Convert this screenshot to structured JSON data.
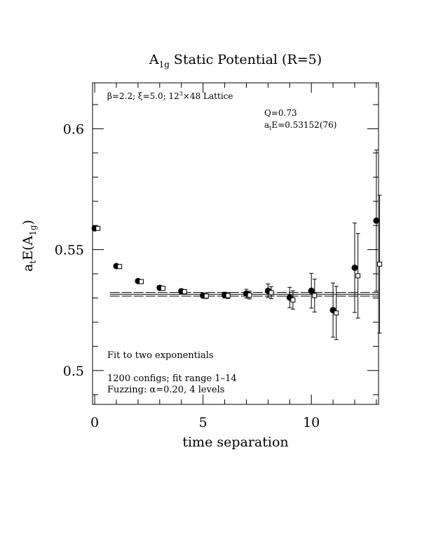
{
  "chart_data": {
    "type": "scatter",
    "title": {
      "main": "A",
      "sub": "1g",
      "rest": " Static Potential (R=5)"
    },
    "xlabel": "time separation",
    "ylabel": {
      "a": "a",
      "a_sub": "t",
      "mid": "E(A",
      "mid_sub": "1g",
      "end": ")"
    },
    "xlim": [
      -0.1,
      13.1
    ],
    "ylim": [
      0.486,
      0.619
    ],
    "x_ticks": [
      0,
      5,
      10
    ],
    "x_tick_labels": [
      "0",
      "5",
      "10"
    ],
    "y_ticks": [
      0.5,
      0.55,
      0.6
    ],
    "y_tick_labels": [
      "0.5",
      "0.55",
      "0.6"
    ],
    "annotations": {
      "lattice": {
        "beta": "β=2.2; ξ=5.0; 12",
        "sup": "3",
        "rest": "×48 Lattice"
      },
      "q": "Q=0.73",
      "ate": {
        "a": "a",
        "sub": "t",
        "rest": "E=0.53152(76)"
      },
      "fit_desc": "Fit to two exponentials",
      "configs": "1200 configs; fit range 1–14",
      "fuzzing": "Fuzzing: α=0.20, 4 levels"
    },
    "fit_band": {
      "central": 0.53152,
      "error": 0.00076,
      "x_start": 0.7,
      "x_end": 13.1
    },
    "series": [
      {
        "marker": "filled-circle",
        "x": [
          0,
          1,
          2,
          3,
          4,
          5,
          6,
          7,
          8,
          9,
          10,
          11,
          12,
          13
        ],
        "y": [
          0.5588,
          0.5432,
          0.537,
          0.5342,
          0.5328,
          0.531,
          0.5312,
          0.5318,
          0.533,
          0.5302,
          0.533,
          0.525,
          0.5425,
          0.562
        ],
        "err": [
          0.0005,
          0.0005,
          0.0006,
          0.0007,
          0.0008,
          0.001,
          0.0012,
          0.0018,
          0.0028,
          0.0042,
          0.0072,
          0.0112,
          0.0185,
          0.0292
        ]
      },
      {
        "marker": "open-square",
        "x": [
          0.15,
          1.15,
          2.15,
          3.15,
          4.15,
          5.15,
          6.15,
          7.15,
          8.15,
          9.15,
          10.15,
          11.15,
          12.15,
          13.15
        ],
        "y": [
          0.5588,
          0.543,
          0.5368,
          0.534,
          0.5326,
          0.5308,
          0.531,
          0.5312,
          0.5322,
          0.5292,
          0.531,
          0.5238,
          0.5392,
          0.544
        ],
        "err": [
          0.0005,
          0.0005,
          0.0006,
          0.0007,
          0.0008,
          0.001,
          0.0012,
          0.0016,
          0.0025,
          0.0038,
          0.0068,
          0.011,
          0.0175,
          0.0285
        ]
      }
    ]
  }
}
